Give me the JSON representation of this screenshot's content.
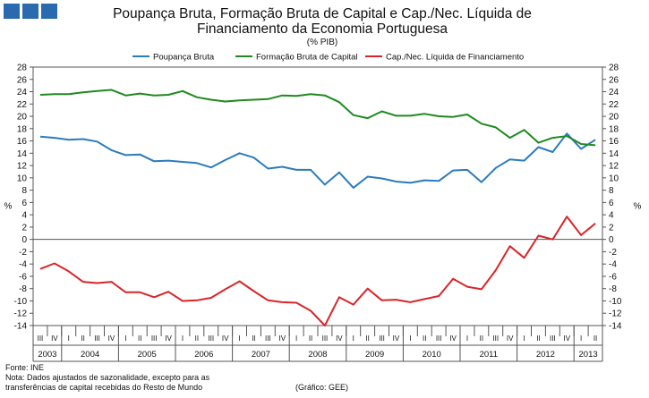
{
  "header": {
    "title_line1": "Poupança Bruta, Formação Bruta de Capital e Cap./Nec. Líquida de",
    "title_line2": "Financiamento da Economia Portuguesa",
    "subtitle": "(% PIB)"
  },
  "footer": {
    "source": "Fonte: INE",
    "note_line1": "Nota: Dados ajustados de sazonalidade, excepto para as",
    "note_line2": "transferências de capital recebidas do Resto de Mundo",
    "credit": "(Gráfico: GEE)"
  },
  "chart_data": {
    "type": "line",
    "title": "Poupança Bruta, Formação Bruta de Capital e Cap./Nec. Líquida de Financiamento da Economia Portuguesa",
    "subtitle": "(% PIB)",
    "ylabel_left": "%",
    "ylabel_right": "%",
    "ylim": [
      -14,
      28
    ],
    "yticks": [
      -14,
      -12,
      -10,
      -8,
      -6,
      -4,
      -2,
      0,
      2,
      4,
      6,
      8,
      10,
      12,
      14,
      16,
      18,
      20,
      22,
      24,
      26,
      28
    ],
    "legend_position": "top",
    "quarter_labels": [
      "III",
      "IV",
      "I",
      "II",
      "III",
      "IV",
      "I",
      "II",
      "III",
      "IV",
      "I",
      "II",
      "III",
      "IV",
      "I",
      "II",
      "III",
      "IV",
      "I",
      "II",
      "III",
      "IV",
      "I",
      "II",
      "III",
      "IV",
      "I",
      "II",
      "III",
      "IV",
      "I",
      "II",
      "III",
      "IV",
      "I",
      "II",
      "III",
      "IV",
      "I",
      "II"
    ],
    "years": [
      {
        "label": "2003",
        "start": 0,
        "count": 2
      },
      {
        "label": "2004",
        "start": 2,
        "count": 4
      },
      {
        "label": "2005",
        "start": 6,
        "count": 4
      },
      {
        "label": "2006",
        "start": 10,
        "count": 4
      },
      {
        "label": "2007",
        "start": 14,
        "count": 4
      },
      {
        "label": "2008",
        "start": 18,
        "count": 4
      },
      {
        "label": "2009",
        "start": 22,
        "count": 4
      },
      {
        "label": "2010",
        "start": 26,
        "count": 4
      },
      {
        "label": "2011",
        "start": 30,
        "count": 4
      },
      {
        "label": "2012",
        "start": 34,
        "count": 4
      },
      {
        "label": "2013",
        "start": 38,
        "count": 2
      }
    ],
    "series": [
      {
        "name": "Poupança Bruta",
        "color": "#2b7bbd",
        "values": [
          16.7,
          16.5,
          16.2,
          16.3,
          15.9,
          14.5,
          13.7,
          13.8,
          12.7,
          12.8,
          12.6,
          12.4,
          11.7,
          12.9,
          14.0,
          13.3,
          11.5,
          11.8,
          11.3,
          11.3,
          8.9,
          10.9,
          8.4,
          10.2,
          9.9,
          9.4,
          9.2,
          9.6,
          9.5,
          11.2,
          11.3,
          9.3,
          11.6,
          13.0,
          12.8,
          15.0,
          14.2,
          17.2,
          14.7,
          16.2
        ]
      },
      {
        "name": "Formação Bruta de Capital",
        "color": "#1f8a1f",
        "values": [
          23.5,
          23.6,
          23.6,
          23.9,
          24.1,
          24.3,
          23.4,
          23.7,
          23.4,
          23.5,
          24.1,
          23.1,
          22.7,
          22.4,
          22.6,
          22.7,
          22.8,
          23.4,
          23.3,
          23.6,
          23.4,
          22.3,
          20.2,
          19.7,
          20.8,
          20.1,
          20.1,
          20.4,
          20.0,
          19.9,
          20.3,
          18.8,
          18.2,
          16.5,
          17.8,
          15.7,
          16.5,
          16.8,
          15.5,
          15.3
        ]
      },
      {
        "name": "Cap./Nec. Líquida de Financiamento",
        "color": "#d9252a",
        "values": [
          -4.8,
          -3.9,
          -5.2,
          -6.9,
          -7.1,
          -6.9,
          -8.6,
          -8.6,
          -9.4,
          -8.5,
          -10.0,
          -9.9,
          -9.5,
          -8.1,
          -6.8,
          -8.4,
          -9.9,
          -10.2,
          -10.3,
          -11.6,
          -14.0,
          -9.4,
          -10.6,
          -8.0,
          -9.9,
          -9.8,
          -10.2,
          -9.7,
          -9.2,
          -6.4,
          -7.7,
          -8.1,
          -5.0,
          -1.1,
          -3.0,
          0.6,
          0.0,
          3.7,
          0.7,
          2.6
        ]
      }
    ]
  }
}
